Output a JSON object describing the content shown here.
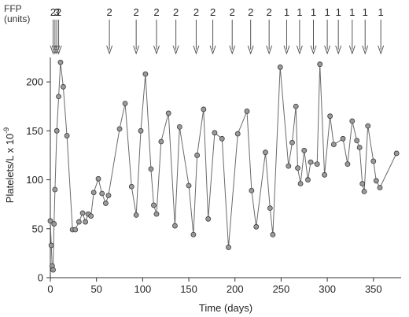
{
  "chart_data": {
    "type": "line",
    "xlabel": "Time (days)",
    "ylabel": "Platelets/L x 10",
    "ylabel_exponent": "-9",
    "xlim": [
      0,
      380
    ],
    "ylim": [
      0,
      225
    ],
    "x_ticks": [
      0,
      50,
      100,
      150,
      200,
      250,
      300,
      350
    ],
    "y_ticks": [
      0,
      50,
      100,
      150,
      200
    ],
    "grid": false,
    "series": [
      {
        "points": [
          [
            0,
            58
          ],
          [
            1,
            33
          ],
          [
            2,
            12
          ],
          [
            3,
            8
          ],
          [
            4,
            55
          ],
          [
            5,
            90
          ],
          [
            7,
            150
          ],
          [
            9,
            185
          ],
          [
            11,
            220
          ],
          [
            14,
            195
          ],
          [
            18,
            145
          ],
          [
            24,
            49
          ],
          [
            27,
            49
          ],
          [
            31,
            57
          ],
          [
            35,
            66
          ],
          [
            38,
            57
          ],
          [
            41,
            65
          ],
          [
            44,
            63
          ],
          [
            47,
            87
          ],
          [
            52,
            101
          ],
          [
            56,
            86
          ],
          [
            60,
            76
          ],
          [
            63,
            84
          ],
          [
            75,
            152
          ],
          [
            81,
            178
          ],
          [
            88,
            93
          ],
          [
            93,
            64
          ],
          [
            98,
            150
          ],
          [
            103,
            208
          ],
          [
            109,
            111
          ],
          [
            112,
            74
          ],
          [
            115,
            65
          ],
          [
            120,
            139
          ],
          [
            128,
            168
          ],
          [
            135,
            53
          ],
          [
            140,
            154
          ],
          [
            150,
            94
          ],
          [
            155,
            44
          ],
          [
            159,
            125
          ],
          [
            166,
            172
          ],
          [
            171,
            60
          ],
          [
            178,
            148
          ],
          [
            186,
            142
          ],
          [
            193,
            31
          ],
          [
            203,
            147
          ],
          [
            213,
            170
          ],
          [
            218,
            89
          ],
          [
            223,
            52
          ],
          [
            233,
            128
          ],
          [
            238,
            71
          ],
          [
            241,
            44
          ],
          [
            249,
            215
          ],
          [
            258,
            114
          ],
          [
            262,
            138
          ],
          [
            266,
            175
          ],
          [
            268,
            112
          ],
          [
            271,
            96
          ],
          [
            275,
            130
          ],
          [
            279,
            100
          ],
          [
            282,
            118
          ],
          [
            289,
            116
          ],
          [
            292,
            218
          ],
          [
            297,
            105
          ],
          [
            303,
            165
          ],
          [
            307,
            136
          ],
          [
            317,
            142
          ],
          [
            322,
            116
          ],
          [
            327,
            160
          ],
          [
            332,
            140
          ],
          [
            335,
            133
          ],
          [
            338,
            96
          ],
          [
            340,
            88
          ],
          [
            344,
            155
          ],
          [
            350,
            119
          ],
          [
            353,
            99
          ],
          [
            357,
            92
          ],
          [
            375,
            127
          ]
        ]
      }
    ],
    "annotations": {
      "title": "FFP",
      "subtitle": "(units)",
      "ffp_doses": [
        {
          "day": 3,
          "units": "2"
        },
        {
          "day": 5,
          "units": ""
        },
        {
          "day": 7,
          "units": "3"
        },
        {
          "day": 9,
          "units": "2"
        },
        {
          "day": 64,
          "units": "2"
        },
        {
          "day": 93,
          "units": "2"
        },
        {
          "day": 115,
          "units": "2"
        },
        {
          "day": 136,
          "units": "2"
        },
        {
          "day": 158,
          "units": "2"
        },
        {
          "day": 176,
          "units": "2"
        },
        {
          "day": 197,
          "units": "2"
        },
        {
          "day": 217,
          "units": "2"
        },
        {
          "day": 237,
          "units": "2"
        },
        {
          "day": 256,
          "units": "1"
        },
        {
          "day": 270,
          "units": "1"
        },
        {
          "day": 285,
          "units": "1"
        },
        {
          "day": 300,
          "units": "1"
        },
        {
          "day": 312,
          "units": "1"
        },
        {
          "day": 327,
          "units": "1"
        },
        {
          "day": 341,
          "units": "1"
        },
        {
          "day": 358,
          "units": "1"
        }
      ]
    }
  }
}
